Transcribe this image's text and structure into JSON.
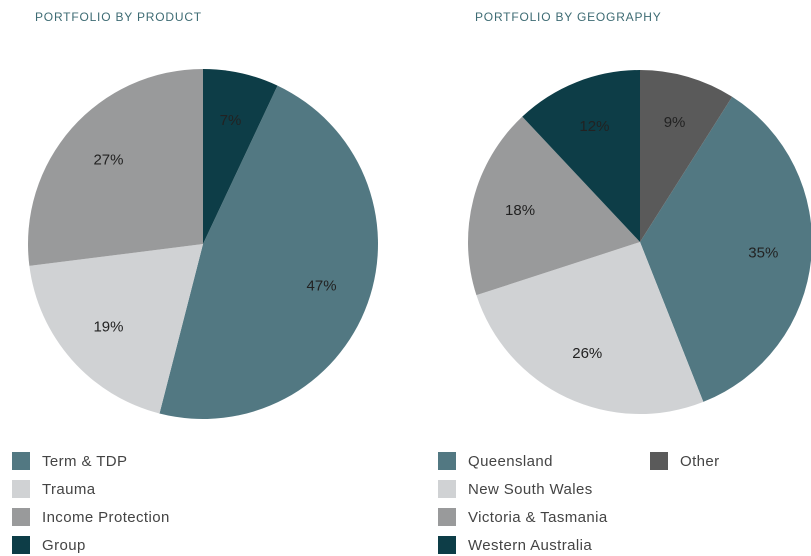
{
  "chart_data": [
    {
      "type": "pie",
      "title": "PORTFOLIO BY PRODUCT",
      "categories": [
        "Term & TDP",
        "Trauma",
        "Income Protection",
        "Group"
      ],
      "values": [
        47,
        19,
        27,
        7
      ],
      "value_labels": [
        "47%",
        "19%",
        "27%",
        "7%"
      ],
      "colors": [
        "#527882",
        "#d0d2d4",
        "#999a9b",
        "#0d3d47"
      ]
    },
    {
      "type": "pie",
      "title": "PORTFOLIO BY GEOGRAPHY",
      "categories": [
        "Queensland",
        "New South Wales",
        "Victoria & Tasmania",
        "Western Australia",
        "Other"
      ],
      "values": [
        35,
        26,
        18,
        12,
        9
      ],
      "value_labels": [
        "35%",
        "26%",
        "18%",
        "12%",
        "9%"
      ],
      "colors": [
        "#527882",
        "#d0d2d4",
        "#999a9b",
        "#0d3d47",
        "#5a5a5a"
      ]
    }
  ]
}
